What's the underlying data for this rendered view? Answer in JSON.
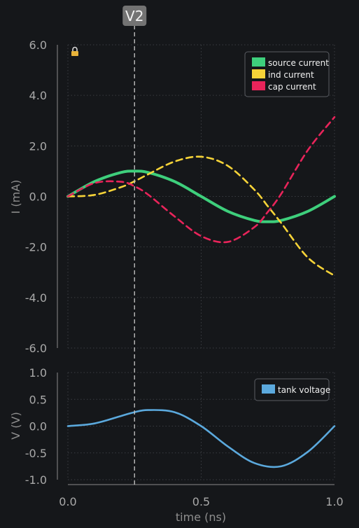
{
  "marker": {
    "label": "V2",
    "x": 0.25
  },
  "lock_icon": "lock-icon",
  "chart_data": [
    {
      "type": "line",
      "xlim": [
        0.0,
        1.0
      ],
      "ylim": [
        -6.0,
        6.0
      ],
      "ylabel": "I (mA)",
      "yticks": [
        "6.0",
        "4.0",
        "2.0",
        "0.0",
        "-2.0",
        "-4.0",
        "-6.0"
      ],
      "ytick_values": [
        6,
        4,
        2,
        0,
        -2,
        -4,
        -6
      ],
      "grid": true,
      "legend": "top-right",
      "series": [
        {
          "name": "source current",
          "color": "#3ecf7c",
          "dashed": false,
          "x": [
            0.0,
            0.1,
            0.2,
            0.25,
            0.3,
            0.4,
            0.5,
            0.6,
            0.7,
            0.75,
            0.8,
            0.9,
            1.0
          ],
          "y": [
            0.0,
            0.59,
            0.95,
            1.0,
            0.95,
            0.59,
            0.0,
            -0.59,
            -0.95,
            -1.0,
            -0.95,
            -0.59,
            0.0
          ]
        },
        {
          "name": "ind current",
          "color": "#f6d338",
          "dashed": true,
          "x": [
            0.0,
            0.1,
            0.2,
            0.25,
            0.3,
            0.4,
            0.5,
            0.6,
            0.7,
            0.75,
            0.8,
            0.9,
            1.0
          ],
          "y": [
            0.0,
            0.06,
            0.37,
            0.6,
            0.87,
            1.38,
            1.57,
            1.21,
            0.26,
            -0.39,
            -1.05,
            -2.42,
            -3.14
          ]
        },
        {
          "name": "cap current",
          "color": "#e8245a",
          "dashed": true,
          "x": [
            0.0,
            0.1,
            0.2,
            0.25,
            0.3,
            0.4,
            0.5,
            0.6,
            0.7,
            0.75,
            0.8,
            0.9,
            1.0
          ],
          "y": [
            0.0,
            0.53,
            0.58,
            0.4,
            0.08,
            -0.79,
            -1.57,
            -1.8,
            -1.21,
            -0.61,
            0.1,
            1.83,
            3.14
          ]
        }
      ]
    },
    {
      "type": "line",
      "xlim": [
        0.0,
        1.0
      ],
      "ylim": [
        -1.0,
        1.0
      ],
      "ylabel": "V (V)",
      "xlabel": "time (ns)",
      "yticks": [
        "1.0",
        "0.5",
        "0.0",
        "-0.5",
        "-1.0"
      ],
      "ytick_values": [
        1,
        0.5,
        0,
        -0.5,
        -1
      ],
      "xticks": [
        "0.0",
        "0.5",
        "1.0"
      ],
      "xtick_values": [
        0,
        0.5,
        1
      ],
      "grid": true,
      "legend": "top-right",
      "series": [
        {
          "name": "tank voltage",
          "color": "#5ba9dd",
          "dashed": false,
          "x": [
            0.0,
            0.1,
            0.2,
            0.25,
            0.3,
            0.4,
            0.5,
            0.6,
            0.7,
            0.8,
            0.9,
            1.0
          ],
          "y": [
            0.0,
            0.05,
            0.19,
            0.26,
            0.3,
            0.26,
            0.0,
            -0.38,
            -0.69,
            -0.75,
            -0.48,
            0.0
          ]
        }
      ]
    }
  ]
}
